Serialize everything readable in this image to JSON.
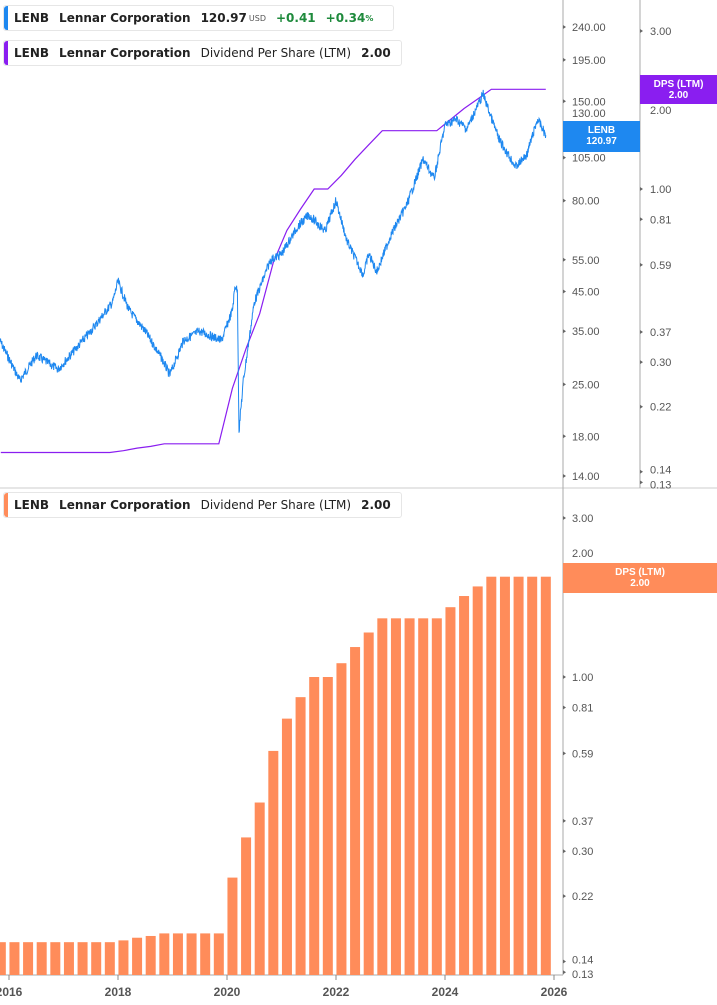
{
  "legend_price": {
    "ticker": "LENB",
    "name": "Lennar Corporation",
    "price": "120.97",
    "currency": "USD",
    "change": "+0.41",
    "change_pct": "+0.34",
    "pct_sign": "%"
  },
  "legend_dps_top": {
    "ticker": "LENB",
    "name": "Lennar Corporation",
    "metric": "Dividend Per Share (LTM)",
    "value": "2.00"
  },
  "legend_dps_bottom": {
    "ticker": "LENB",
    "name": "Lennar Corporation",
    "metric": "Dividend Per Share (LTM)",
    "value": "2.00"
  },
  "tags": {
    "price": {
      "label": "LENB",
      "value": "120.97"
    },
    "dps_top": {
      "label": "DPS (LTM)",
      "value": "2.00"
    },
    "dps_bottom": {
      "label": "DPS (LTM)",
      "value": "2.00"
    }
  },
  "colors": {
    "price": "#1e88f0",
    "dps_line": "#8a1ef0",
    "dps_bar": "#ff8c5a"
  },
  "chart_data": [
    {
      "type": "line",
      "series": [
        {
          "name": "LENB",
          "points": [
            [
              2015.83,
              33
            ],
            [
              2016.2,
              25.6
            ],
            [
              2016.5,
              30
            ],
            [
              2016.9,
              27.5
            ],
            [
              2017.2,
              31
            ],
            [
              2017.5,
              35
            ],
            [
              2017.9,
              42
            ],
            [
              2018.0,
              48
            ],
            [
              2018.2,
              40
            ],
            [
              2018.5,
              35
            ],
            [
              2018.8,
              29.5
            ],
            [
              2018.95,
              26.5
            ],
            [
              2019.2,
              33
            ],
            [
              2019.5,
              35
            ],
            [
              2019.9,
              33
            ],
            [
              2020.1,
              40
            ],
            [
              2020.15,
              47
            ],
            [
              2020.19,
              45
            ],
            [
              2020.22,
              18.6
            ],
            [
              2020.3,
              25.6
            ],
            [
              2020.5,
              42
            ],
            [
              2020.8,
              55
            ],
            [
              2021.0,
              57
            ],
            [
              2021.3,
              68
            ],
            [
              2021.5,
              73
            ],
            [
              2021.8,
              66
            ],
            [
              2022.0,
              80
            ],
            [
              2022.2,
              62
            ],
            [
              2022.5,
              50
            ],
            [
              2022.6,
              57
            ],
            [
              2022.75,
              51
            ],
            [
              2023.0,
              64
            ],
            [
              2023.3,
              78
            ],
            [
              2023.6,
              104
            ],
            [
              2023.8,
              92
            ],
            [
              2024.0,
              129
            ],
            [
              2024.2,
              134
            ],
            [
              2024.4,
              126
            ],
            [
              2024.7,
              157
            ],
            [
              2024.85,
              135
            ],
            [
              2025.0,
              117
            ],
            [
              2025.3,
              99
            ],
            [
              2025.5,
              107
            ],
            [
              2025.7,
              134
            ],
            [
              2025.85,
              121
            ]
          ]
        }
      ],
      "y_scale": "log",
      "y_ticks": [
        "240.00",
        "195.00",
        "150.00",
        "130.00",
        "105.00",
        "80.00",
        "55.00",
        "45.00",
        "35.00",
        "25.00",
        "18.00",
        "14.00"
      ],
      "y2_ticks": [
        "3.00",
        "2.00",
        "1.00",
        "0.81",
        "0.59",
        "0.37",
        "0.30",
        "0.22",
        "0.14",
        "0.13"
      ]
    },
    {
      "type": "bar",
      "series": [
        {
          "name": "Dividend Per Share (LTM)",
          "start": 2015.85,
          "step_years": 0.25,
          "values": [
            0.16,
            0.16,
            0.16,
            0.16,
            0.16,
            0.16,
            0.16,
            0.16,
            0.16,
            0.162,
            0.165,
            0.167,
            0.17,
            0.17,
            0.17,
            0.17,
            0.17,
            0.25,
            0.33,
            0.42,
            0.6,
            0.75,
            0.87,
            1.0,
            1.0,
            1.1,
            1.23,
            1.36,
            1.5,
            1.5,
            1.5,
            1.5,
            1.5,
            1.62,
            1.75,
            1.87,
            2.0,
            2.0,
            2.0,
            2.0,
            2.0
          ]
        }
      ],
      "y_scale": "log",
      "y_ticks": [
        "3.00",
        "2.00",
        "1.00",
        "0.81",
        "0.59",
        "0.37",
        "0.30",
        "0.22",
        "0.14",
        "0.13"
      ],
      "x_ticks": [
        "2016",
        "2018",
        "2020",
        "2022",
        "2024",
        "2026"
      ]
    }
  ]
}
